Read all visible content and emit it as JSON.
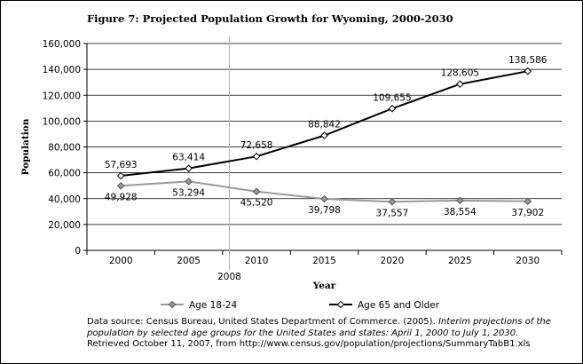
{
  "title": "Figure 7: Projected Population Growth for Wyoming, 2000-2030",
  "chart_data": {
    "type": "line",
    "title": "Figure 7: Projected Population Growth for Wyoming, 2000-2030",
    "xlabel": "Year",
    "ylabel": "Population",
    "categories": [
      "2000",
      "2005",
      "2010",
      "2015",
      "2020",
      "2025",
      "2030"
    ],
    "ylim": [
      0,
      160000
    ],
    "yticks": [
      0,
      20000,
      40000,
      60000,
      80000,
      100000,
      120000,
      140000,
      160000
    ],
    "ytick_labels": [
      "0",
      "20,000",
      "40,000",
      "60,000",
      "80,000",
      "100,000",
      "120,000",
      "140,000",
      "160,000"
    ],
    "grid": true,
    "reference_line": {
      "label": "2008",
      "position_between": [
        "2005",
        "2010"
      ],
      "fraction": 0.6
    },
    "series": [
      {
        "name": "Age 18-24",
        "color": "#999999",
        "marker": "filled-diamond",
        "values": [
          49928,
          53294,
          45520,
          39798,
          37557,
          38554,
          37902
        ],
        "labels": [
          "49,928",
          "53,294",
          "45,520",
          "39,798",
          "37,557",
          "38,554",
          "37,902"
        ]
      },
      {
        "name": "Age 65 and Older",
        "color": "#000000",
        "marker": "open-diamond",
        "values": [
          57693,
          63414,
          72658,
          88842,
          109655,
          128605,
          138586
        ],
        "labels": [
          "57,693",
          "63,414",
          "72,658",
          "88,842",
          "109,655",
          "128,605",
          "138,586"
        ]
      }
    ],
    "legend_position": "bottom"
  },
  "source": {
    "prefix": "Data source: Census Bureau, United States Department of Commerce. (2005). ",
    "italic": "Interim projections of the population by selected age groups for the United States and states: April 1, 2000 to July 1, 2030.",
    "suffix": "Retrieved October 11, 2007, from http://www.census.gov/population/projections/SummaryTabB1.xls"
  }
}
